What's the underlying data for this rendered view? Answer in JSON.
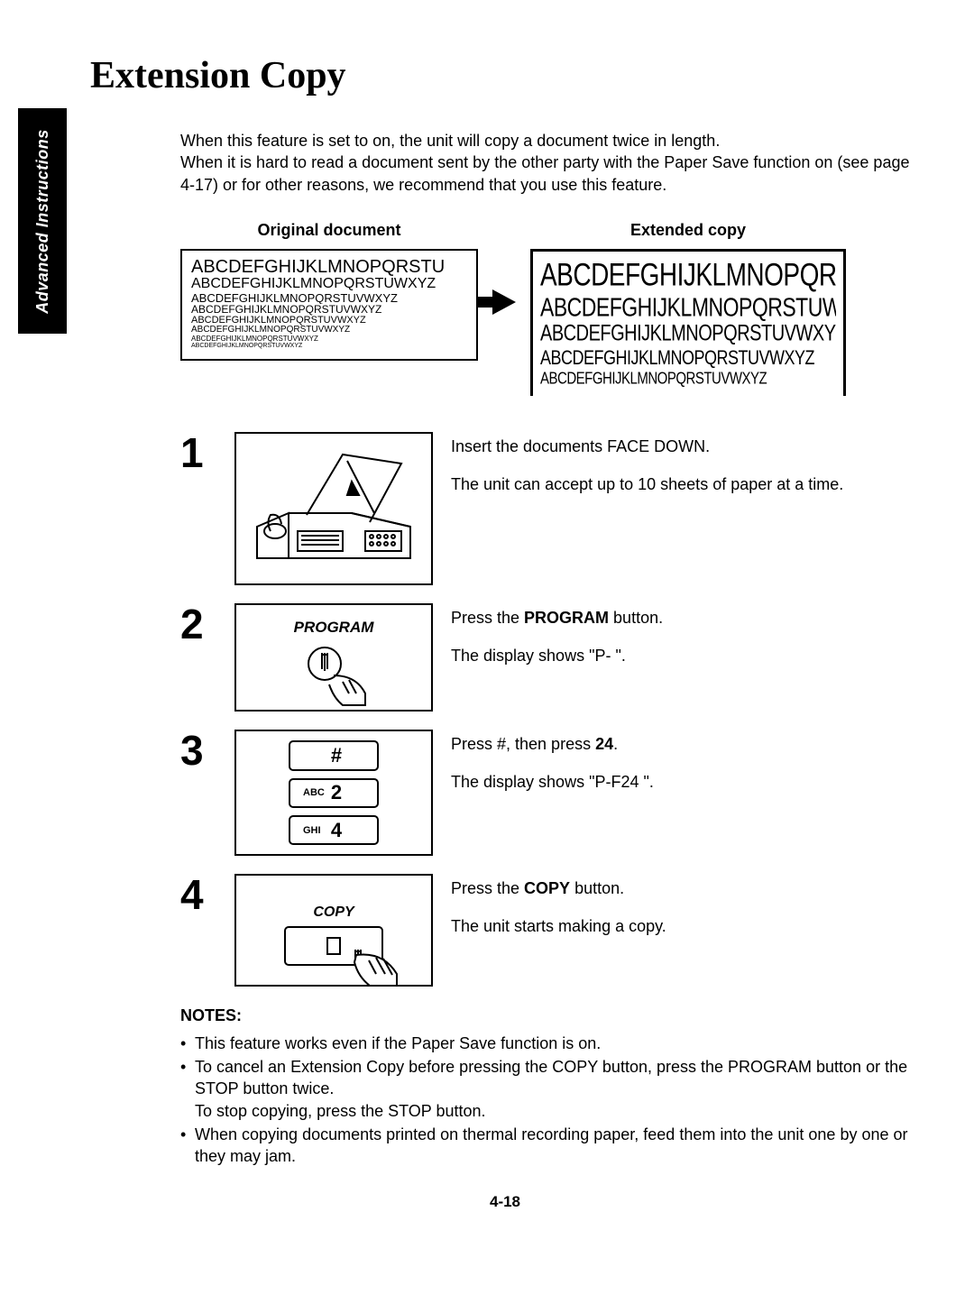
{
  "sideTab": "Advanced Instructions",
  "title": "Extension Copy",
  "intro": "When this feature is set to on, the unit will copy a document twice in length.\nWhen it is hard to read a document sent by the other party with the Paper Save function on (see page 4-17) or for other reasons, we recommend that you use this feature.",
  "diagram": {
    "origLabel": "Original document",
    "extLabel": "Extended copy",
    "origLines": [
      {
        "text": "ABCDEFGHIJKLMNOPQRSTU",
        "size": 20
      },
      {
        "text": "ABCDEFGHIJKLMNOPQRSTUWXYZ",
        "size": 16
      },
      {
        "text": "ABCDEFGHIJKLMNOPQRSTUVWXYZ",
        "size": 13
      },
      {
        "text": "ABCDEFGHIJKLMNOPQRSTUVWXYZ",
        "size": 12
      },
      {
        "text": "ABCDEFGHIJKLMNOPQRSTUVWXYZ",
        "size": 11
      },
      {
        "text": "ABCDEFGHIJKLMNOPQRSTUVWXYZ",
        "size": 10
      },
      {
        "text": "ABCDEFGHIJKLMNOPQRSTUVWXYZ",
        "size": 8
      },
      {
        "text": "ABCDEFGHIJKLMNOPQRSTUVWXYZ",
        "size": 7
      }
    ],
    "extLines": [
      {
        "text": "ABCDEFGHIJKLMNOPQRSTU",
        "size": 28
      },
      {
        "text": "ABCDEFGHIJKLMNOPQRSTUWXYZ",
        "size": 23
      },
      {
        "text": "ABCDEFGHIJKLMNOPQRSTUVWXYZ",
        "size": 20
      },
      {
        "text": "ABCDEFGHIJKLMNOPQRSTUVWXYZ",
        "size": 18
      },
      {
        "text": "ABCDEFGHIJKLMNOPQRSTUVWXYZ",
        "size": 15
      }
    ]
  },
  "steps": {
    "s1": {
      "num": "1",
      "line1": "Insert the documents FACE DOWN.",
      "line2": "The unit can accept up to 10 sheets of paper at a time."
    },
    "s2": {
      "num": "2",
      "boxLabel": "PROGRAM",
      "line1_a": "Press the ",
      "line1_b": "PROGRAM",
      "line1_c": " button.",
      "line2": "The display shows \"P-  \"."
    },
    "s3": {
      "num": "3",
      "keys": [
        {
          "sub": "",
          "main": "#"
        },
        {
          "sub": "ABC",
          "main": "2"
        },
        {
          "sub": "GHI",
          "main": "4"
        }
      ],
      "line1_a": "Press #, then press ",
      "line1_b": "24",
      "line1_c": ".",
      "line2": "The display shows \"P-F24  \"."
    },
    "s4": {
      "num": "4",
      "boxLabel": "COPY",
      "line1_a": "Press the ",
      "line1_b": "COPY",
      "line1_c": " button.",
      "line2": "The unit starts making a copy."
    }
  },
  "notes": {
    "title": "NOTES:",
    "items": [
      "This feature works even if the Paper Save function is on.",
      "To cancel an Extension Copy before pressing the COPY button, press the PROGRAM button or the STOP button twice.\nTo stop copying, press the STOP button.",
      "When copying documents printed on thermal recording paper, feed them into the unit one by one or they may jam."
    ]
  },
  "pageNum": "4-18"
}
